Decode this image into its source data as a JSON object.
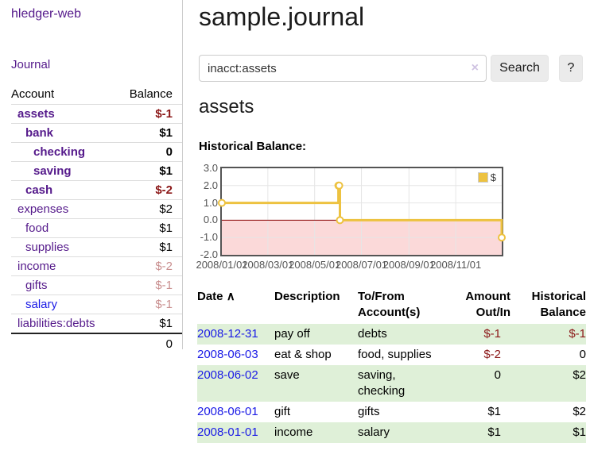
{
  "app": {
    "title": "hledger-web"
  },
  "colors": {
    "accent_purple": "#551a8b",
    "link_blue": "#1a1ae6",
    "negative_strong": "#8b1717",
    "negative_soft": "#c98f8f",
    "table_stripe_green": "#dff0d8",
    "series_gold": "#edc240",
    "chart_negative_fill": "#fbd9d9",
    "chart_zero_line": "#8b0000"
  },
  "sidebar": {
    "journal_link": "Journal",
    "accounts": {
      "header_account": "Account",
      "header_balance": "Balance",
      "rows": [
        {
          "name": "assets",
          "balance": "$-1",
          "level": 0,
          "matched": true,
          "blue": false
        },
        {
          "name": "bank",
          "balance": "$1",
          "level": 1,
          "matched": true,
          "blue": false
        },
        {
          "name": "checking",
          "balance": "0",
          "level": 2,
          "matched": true,
          "blue": false
        },
        {
          "name": "saving",
          "balance": "$1",
          "level": 2,
          "matched": true,
          "blue": false
        },
        {
          "name": "cash",
          "balance": "$-2",
          "level": 1,
          "matched": true,
          "blue": false
        },
        {
          "name": "expenses",
          "balance": "$2",
          "level": 0,
          "matched": false,
          "blue": false
        },
        {
          "name": "food",
          "balance": "$1",
          "level": 1,
          "matched": false,
          "blue": false
        },
        {
          "name": "supplies",
          "balance": "$1",
          "level": 1,
          "matched": false,
          "blue": false
        },
        {
          "name": "income",
          "balance": "$-2",
          "level": 0,
          "matched": false,
          "blue": false
        },
        {
          "name": "gifts",
          "balance": "$-1",
          "level": 1,
          "matched": false,
          "blue": false
        },
        {
          "name": "salary",
          "balance": "$-1",
          "level": 1,
          "matched": false,
          "blue": true
        },
        {
          "name": "liabilities:debts",
          "balance": "$1",
          "level": 0,
          "matched": false,
          "blue": false
        }
      ],
      "total": "0"
    }
  },
  "main": {
    "title": "sample.journal",
    "account_heading": "assets",
    "chart_heading": "Historical Balance:"
  },
  "search": {
    "value": "inacct:assets",
    "clear_icon": "×",
    "button_label": "Search",
    "help_label": "?"
  },
  "chart_data": {
    "type": "line",
    "line_shape": "step-after",
    "title": "Historical Balance",
    "legend": {
      "label": "$",
      "position": "top-right"
    },
    "series": [
      {
        "name": "$",
        "color": "#edc240",
        "points": [
          [
            "2008-01-01",
            1
          ],
          [
            "2008-06-01",
            2
          ],
          [
            "2008-06-02",
            2
          ],
          [
            "2008-06-03",
            0
          ],
          [
            "2008-12-31",
            -1
          ]
        ]
      }
    ],
    "xrange": [
      "2008-01-01",
      "2008-12-31"
    ],
    "ylim": [
      -2,
      3
    ],
    "y_ticks": [
      "3.0",
      "2.0",
      "1.0",
      "0.0",
      "-1.0",
      "-2.0"
    ],
    "x_ticks": [
      {
        "date": "2008-01-01",
        "label": "2008/01/01"
      },
      {
        "date": "2008-03-01",
        "label": "2008/03/01"
      },
      {
        "date": "2008-05-01",
        "label": "2008/05/01"
      },
      {
        "date": "2008-07-01",
        "label": "2008/07/01"
      },
      {
        "date": "2008-09-01",
        "label": "2008/09/01"
      },
      {
        "date": "2008-11-01",
        "label": "2008/11/01"
      }
    ],
    "grid": true,
    "negative_region_fill": "#fbd9d9",
    "zero_line_color": "#8b0000",
    "grid_color": "#e6e6e6"
  },
  "register": {
    "columns": [
      "Date",
      "Description",
      "To/From Account(s)",
      "Amount Out/In",
      "Historical Balance"
    ],
    "sort_arrow_icon": "∧",
    "rows": [
      {
        "date": "2008-12-31",
        "description": "pay off",
        "accounts": "debts",
        "amount": "$-1",
        "balance": "$-1"
      },
      {
        "date": "2008-06-03",
        "description": "eat & shop",
        "accounts": "food, supplies",
        "amount": "$-2",
        "balance": "0"
      },
      {
        "date": "2008-06-02",
        "description": "save",
        "accounts": "saving, checking",
        "amount": "0",
        "balance": "$2"
      },
      {
        "date": "2008-06-01",
        "description": "gift",
        "accounts": "gifts",
        "amount": "$1",
        "balance": "$2"
      },
      {
        "date": "2008-01-01",
        "description": "income",
        "accounts": "salary",
        "amount": "$1",
        "balance": "$1"
      }
    ]
  }
}
